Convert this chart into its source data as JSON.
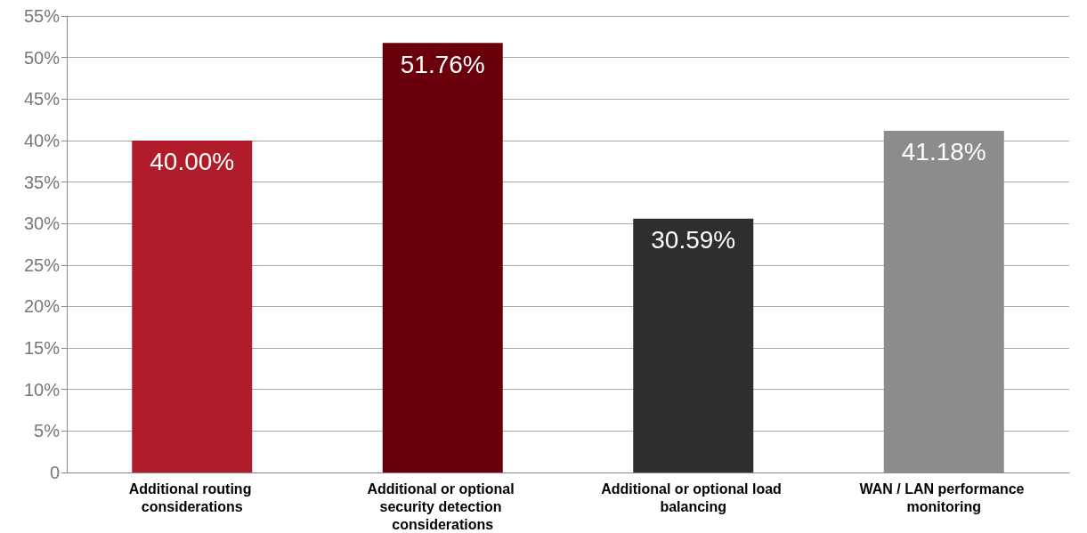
{
  "chart_data": {
    "type": "bar",
    "categories": [
      "Additional routing considerations",
      "Additional or optional security detection considerations",
      "Additional or optional load balancing",
      "WAN / LAN performance monitoring"
    ],
    "values": [
      40.0,
      51.76,
      30.59,
      41.18
    ],
    "colors": [
      "#b01c2a",
      "#6a000c",
      "#2e2e2e",
      "#8c8c8c"
    ],
    "value_labels": [
      "40.00%",
      "51.76%",
      "30.59%",
      "41.18%"
    ],
    "ylim": [
      0,
      55
    ],
    "yticks": [
      0,
      {
        "value": 5,
        "label": "5%"
      },
      {
        "value": 10,
        "label": "10%"
      },
      {
        "value": 15,
        "label": "15%"
      },
      {
        "value": 20,
        "label": "20%"
      },
      {
        "value": 25,
        "label": "25%"
      },
      {
        "value": 30,
        "label": "30%"
      },
      {
        "value": 35,
        "label": "35%"
      },
      {
        "value": 40,
        "label": "40%"
      },
      {
        "value": 45,
        "label": "45%"
      },
      {
        "value": 50,
        "label": "50%"
      },
      {
        "value": 55,
        "label": "55%"
      }
    ],
    "grid": "y"
  }
}
